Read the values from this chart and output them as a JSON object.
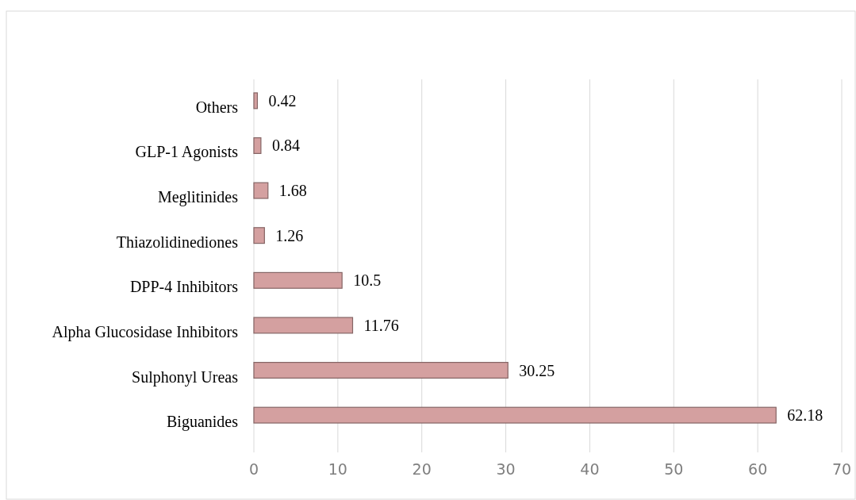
{
  "chart_data": {
    "type": "bar",
    "orientation": "horizontal",
    "categories": [
      "Others",
      "GLP-1 Agonists",
      "Meglitinides",
      "Thiazolidinediones",
      "DPP-4 Inhibitors",
      "Alpha Glucosidase Inhibitors",
      "Sulphonyl Ureas",
      "Biguanides"
    ],
    "values": [
      0.42,
      0.84,
      1.68,
      1.26,
      10.5,
      11.76,
      30.25,
      62.18
    ],
    "color": "#d4a0a0",
    "xlim": [
      0,
      70
    ],
    "xticks": [
      0,
      10,
      20,
      30,
      40,
      50,
      60,
      70
    ],
    "grid": "x",
    "data_labels": true
  }
}
